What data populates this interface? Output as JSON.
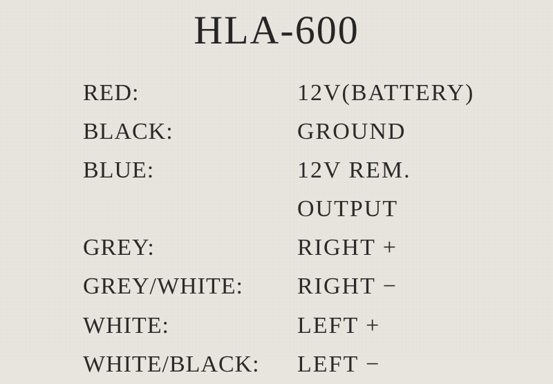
{
  "title": "HLA-600",
  "wiring": [
    {
      "label": "RED:",
      "value": "12V(BATTERY)"
    },
    {
      "label": "BLACK:",
      "value": "GROUND"
    },
    {
      "label": "BLUE:",
      "value": "12V REM. OUTPUT"
    },
    {
      "label": "GREY:",
      "value": "RIGHT +"
    },
    {
      "label": "GREY/WHITE:",
      "value": "RIGHT −"
    },
    {
      "label": "WHITE:",
      "value": "LEFT +"
    },
    {
      "label": "WHITE/BLACK:",
      "value": "LEFT −"
    }
  ],
  "colors": {
    "background": "#e8e4de",
    "text": "#2a2a2a"
  },
  "typography": {
    "title_fontsize": 58,
    "body_fontsize": 34,
    "font_family": "Times New Roman, serif"
  }
}
